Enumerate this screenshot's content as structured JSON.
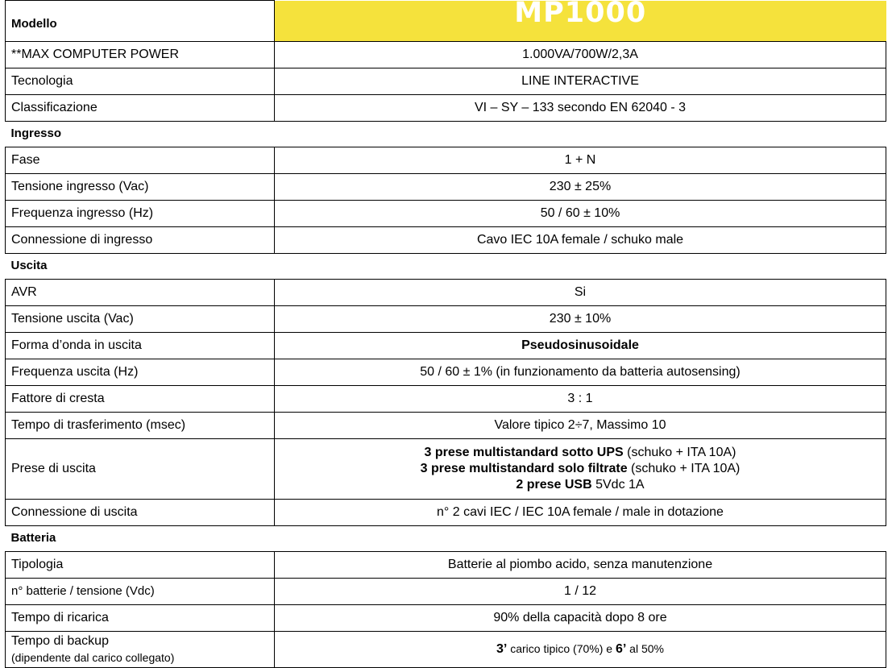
{
  "header": {
    "model_label": "Modello",
    "model_name": "MP1000"
  },
  "general": [
    {
      "label": "**MAX COMPUTER POWER",
      "value": "1.000VA/700W/2,3A"
    },
    {
      "label": "Tecnologia",
      "value": "LINE INTERACTIVE"
    },
    {
      "label": "Classificazione",
      "value": "VI – SY – 133 secondo EN 62040 - 3"
    }
  ],
  "input": {
    "title": "Ingresso",
    "rows": [
      {
        "label": "Fase",
        "value": "1 + N"
      },
      {
        "label": "Tensione ingresso (Vac)",
        "value": "230 ± 25%"
      },
      {
        "label": "Frequenza ingresso (Hz)",
        "value": "50 / 60 ± 10%"
      },
      {
        "label": "Connessione di ingresso",
        "value": "Cavo IEC 10A female / schuko male"
      }
    ]
  },
  "output": {
    "title": "Uscita",
    "rows": [
      {
        "label": "AVR",
        "value": "Si"
      },
      {
        "label": "Tensione uscita (Vac)",
        "value": "230 ± 10%"
      },
      {
        "label": "Forma d’onda in uscita",
        "value": "Pseudosinusoidale"
      },
      {
        "label": "Frequenza uscita (Hz)",
        "value": "50 / 60 ± 1% (in funzionamento da batteria autosensing)"
      },
      {
        "label": "Fattore di cresta",
        "value": "3 : 1"
      },
      {
        "label": "Tempo di trasferimento (msec)",
        "value": "Valore tipico 2÷7,  Massimo 10"
      }
    ],
    "sockets": {
      "label": "Prese di uscita",
      "line1_bold": "3 prese multistandard  sotto UPS",
      "line1_rest": " (schuko + ITA 10A)",
      "line2_bold": "3 prese multistandard  solo filtrate",
      "line2_rest": " (schuko + ITA 10A)",
      "line3_bold": "2 prese USB",
      "line3_rest": " 5Vdc 1A"
    },
    "connection": {
      "label": "Connessione di uscita",
      "value": "n° 2 cavi IEC / IEC 10A female / male in dotazione"
    }
  },
  "battery": {
    "title": "Batteria",
    "rows": [
      {
        "label": "Tipologia",
        "value": "Batterie al piombo acido, senza manutenzione"
      },
      {
        "label": "n° batterie / tensione (Vdc)",
        "value": "1 / 12"
      },
      {
        "label": "Tempo di ricarica",
        "value": "90% della capacità dopo 8 ore"
      }
    ],
    "backup": {
      "label": "Tempo di backup",
      "sublabel": "(dipendente dal carico collegato)",
      "v1_bold": "3’",
      "v1_rest": " carico tipico (70%) e ",
      "v2_bold": "6’",
      "v2_rest": " al 50%"
    }
  }
}
